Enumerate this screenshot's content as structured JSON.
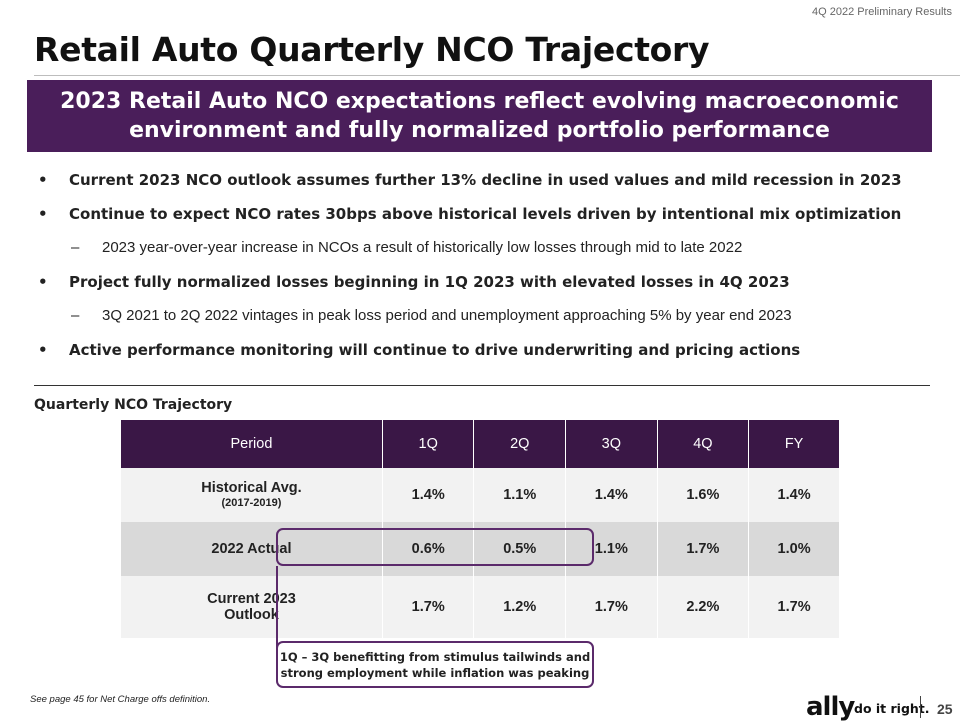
{
  "header": {
    "tag": "4Q 2022 Preliminary Results"
  },
  "title": "Retail Auto Quarterly NCO Trajectory",
  "banner": {
    "line1": "2023 Retail Auto NCO expectations reflect evolving macroeconomic",
    "line2": "environment and fully normalized portfolio performance"
  },
  "bullets": [
    {
      "text": "Current 2023 NCO outlook assumes further 13% decline in used values and mild recession in 2023"
    },
    {
      "text": "Continue to expect NCO rates 30bps above historical levels driven by intentional mix optimization"
    },
    {
      "text": "2023 year-over-year increase in NCOs a result of historically low losses through mid to late 2022"
    },
    {
      "text": "Project fully normalized losses beginning in 1Q 2023 with elevated losses in 4Q 2023"
    },
    {
      "text": "3Q 2021 to 2Q 2022 vintages in peak loss period and unemployment approaching 5% by year end 2023"
    },
    {
      "text": "Active performance monitoring will continue to drive underwriting and pricing actions"
    }
  ],
  "marks": {
    "bullet": "•",
    "dash": "–"
  },
  "section_label": "Quarterly NCO Trajectory",
  "table": {
    "headers": [
      "Period",
      "1Q",
      "2Q",
      "3Q",
      "4Q",
      "FY"
    ],
    "rows": [
      {
        "label": "Historical Avg.",
        "sublabel": "(2017-2019)",
        "values": [
          "1.4%",
          "1.1%",
          "1.4%",
          "1.6%",
          "1.4%"
        ]
      },
      {
        "label": "2022 Actual",
        "values": [
          "0.6%",
          "0.5%",
          "1.1%",
          "1.7%",
          "1.0%"
        ]
      },
      {
        "label": "Current 2023",
        "label2": "Outlook",
        "values": [
          "1.7%",
          "1.2%",
          "1.7%",
          "2.2%",
          "1.7%"
        ]
      }
    ]
  },
  "callout": {
    "line1": "1Q – 3Q benefitting from stimulus tailwinds and",
    "line2": "strong employment while inflation was peaking"
  },
  "footer": {
    "footnote": "See page 45 for Net Charge offs definition.",
    "logo": "ally",
    "tagline": "do it right.",
    "page": "25"
  },
  "colors": {
    "brand": "#4a1e5a",
    "table_header": "#3a1746",
    "accent_border": "#5b2a6b"
  }
}
